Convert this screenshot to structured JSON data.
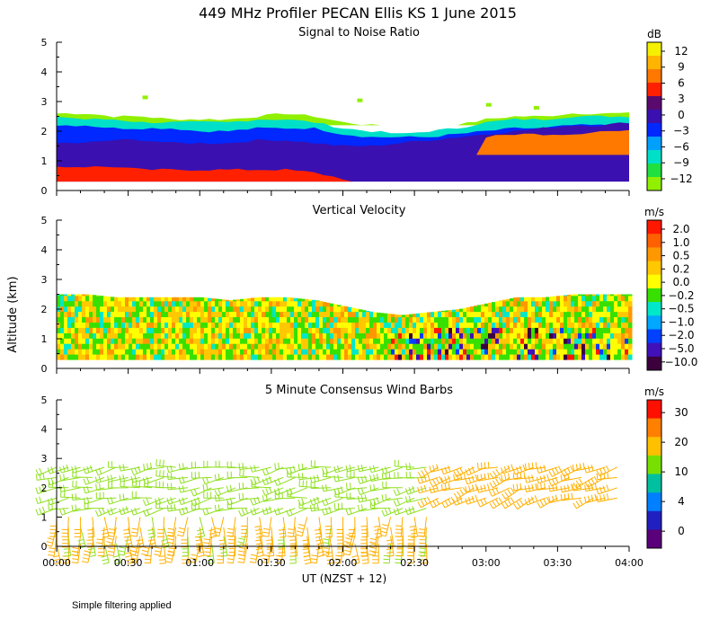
{
  "figure_title": "449 MHz Profiler PECAN Ellis KS   1 June 2015",
  "footer_note": "Simple filtering applied",
  "shared": {
    "ylabel": "Altitude (km)",
    "xlabel": "UT  (NZST + 12)",
    "y_ticks": [
      "0",
      "1",
      "2",
      "3",
      "4",
      "5"
    ],
    "x_ticks": [
      "00:00",
      "00:30",
      "01:00",
      "01:30",
      "02:00",
      "02:30",
      "03:00",
      "03:30",
      "04:00"
    ]
  },
  "chart_data": [
    {
      "type": "heatmap",
      "title": "Signal to Noise Ratio",
      "xlim": [
        "00:00",
        "04:00"
      ],
      "ylim": [
        0,
        5
      ],
      "colorbar": {
        "unit": "dB",
        "labels": [
          "12",
          "9",
          "6",
          "3",
          "0",
          "−3",
          "−6",
          "−9",
          "−12"
        ],
        "colors": [
          "#f4f000",
          "#ffb400",
          "#ff7800",
          "#ff2000",
          "#5a0a6e",
          "#3a10b0",
          "#0028ff",
          "#00a0ff",
          "#00e0c8",
          "#20e040",
          "#90f000"
        ]
      },
      "layers": [
        {
          "level_db": -12,
          "color": "#90f000",
          "bottom_km": 2.2,
          "top_km": [
            2.6,
            2.6,
            2.5,
            2.5,
            2.4,
            2.4,
            2.4,
            2.5,
            2.6,
            2.5,
            2.3,
            2.2,
            2.1,
            2.1,
            2.2,
            2.4,
            2.5,
            2.5,
            2.6,
            2.6,
            2.6
          ]
        },
        {
          "level_db": -9,
          "color": "#00e0c8",
          "bottom_km": 1.6,
          "top_km": [
            2.5,
            2.4,
            2.4,
            2.3,
            2.3,
            2.3,
            2.3,
            2.4,
            2.4,
            2.3,
            2.1,
            2.0,
            1.9,
            2.0,
            2.1,
            2.3,
            2.4,
            2.4,
            2.5,
            2.5,
            2.5
          ]
        },
        {
          "level_db": -6,
          "color": "#0028ff",
          "bottom_km": 1.1,
          "top_km": [
            2.2,
            2.2,
            2.1,
            2.1,
            2.1,
            2.0,
            2.0,
            2.1,
            2.1,
            2.1,
            1.9,
            1.8,
            1.8,
            1.8,
            1.9,
            2.0,
            2.1,
            2.1,
            2.2,
            2.2,
            2.2
          ]
        },
        {
          "level_db": -3,
          "color": "#3a10b0",
          "bottom_km": 0.3,
          "top_km": [
            1.6,
            1.6,
            1.7,
            1.7,
            1.6,
            1.6,
            1.6,
            1.7,
            1.7,
            1.6,
            1.5,
            1.5,
            1.6,
            1.7,
            1.8,
            1.9,
            2.0,
            2.1,
            2.2,
            2.2,
            2.3
          ]
        },
        {
          "level_db": 6,
          "color": "#ff2000",
          "bottom_km": 0.3,
          "top_km": [
            0.8,
            0.8,
            0.8,
            0.7,
            0.7,
            0.7,
            0.7,
            0.7,
            0.7,
            0.6,
            0.4,
            0.0,
            0.0,
            0.0,
            0.0,
            0.0,
            0.0,
            0.0,
            0.0,
            0.0,
            0.0
          ]
        },
        {
          "level_db": 6,
          "color": "#ff7800",
          "bottom_km": 1.2,
          "top_km": [
            0,
            0,
            0,
            0,
            0,
            0,
            0,
            0,
            0,
            0,
            0,
            0,
            0,
            0,
            0,
            1.8,
            1.9,
            1.9,
            1.9,
            2.0,
            2.0
          ]
        }
      ]
    },
    {
      "type": "heatmap",
      "title": "Vertical Velocity",
      "xlim": [
        "00:00",
        "04:00"
      ],
      "ylim": [
        0,
        5
      ],
      "colorbar": {
        "unit": "m/s",
        "labels": [
          "2.0",
          "1.0",
          "0.5",
          "0.2",
          "0.0",
          "−0.2",
          "−0.5",
          "−1.0",
          "−2.0",
          "−5.0",
          "−10.0"
        ],
        "colors": [
          "#ff1800",
          "#ff6000",
          "#ff9800",
          "#ffc800",
          "#ffff00",
          "#38e000",
          "#00e8c8",
          "#00a8ff",
          "#0040ff",
          "#4010b8",
          "#3c003c"
        ]
      },
      "echo_top_km": [
        2.5,
        2.5,
        2.4,
        2.4,
        2.4,
        2.4,
        2.3,
        2.4,
        2.4,
        2.3,
        2.1,
        1.9,
        1.8,
        1.9,
        2.0,
        2.2,
        2.4,
        2.4,
        2.5,
        2.5,
        2.5
      ],
      "echo_bottom_km": 0.3,
      "dominant_values_ms": [
        0.2,
        0.0,
        -0.2,
        -0.5,
        0.5
      ]
    },
    {
      "type": "wind_barbs",
      "title": "5 Minute Consensus Wind Barbs",
      "xlim": [
        "00:00",
        "04:00"
      ],
      "ylim": [
        0,
        5
      ],
      "colorbar": {
        "unit": "m/s",
        "labels": [
          "30",
          "20",
          "10",
          "4",
          "0"
        ],
        "colors": [
          "#ff1000",
          "#ff8000",
          "#ffc000",
          "#78e000",
          "#00c0a0",
          "#0080ff",
          "#2020c0",
          "#5a007a"
        ]
      },
      "levels_km": [
        0.1,
        0.35,
        0.65,
        1.0,
        1.3,
        1.65,
        2.0,
        2.35,
        2.7
      ],
      "layers": [
        {
          "alt_range_km": [
            0.1,
            1.2
          ],
          "speed_ms": 16,
          "direction_deg": 180,
          "x_range": [
            "00:00",
            "02:35"
          ]
        },
        {
          "alt_range_km": [
            1.2,
            2.8
          ],
          "speed_ms": 11,
          "direction_deg": 260,
          "x_range": [
            "00:00",
            "02:35"
          ]
        },
        {
          "alt_range_km": [
            1.4,
            2.9
          ],
          "speed_ms": 18,
          "direction_deg": 250,
          "x_range": [
            "02:35",
            "04:00"
          ]
        }
      ]
    }
  ]
}
